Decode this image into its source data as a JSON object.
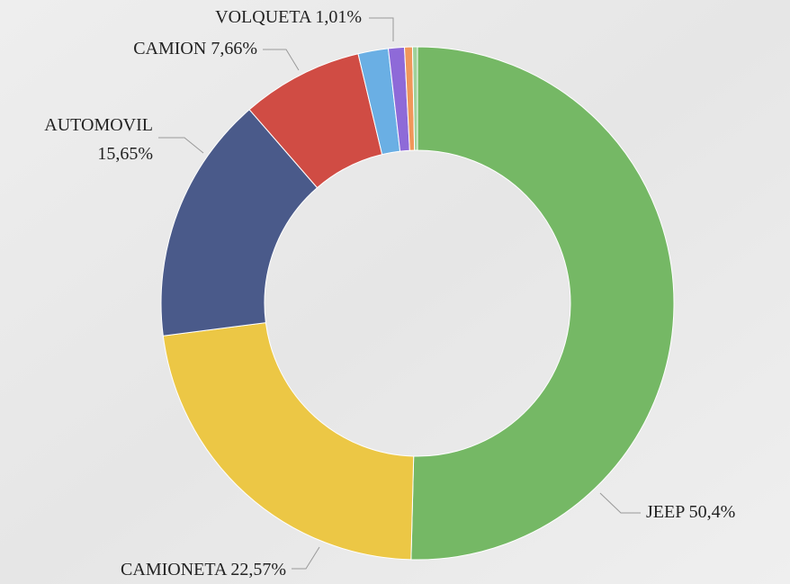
{
  "chart_data": {
    "type": "donut",
    "categories": [
      "JEEP",
      "CAMIONETA",
      "AUTOMOVIL",
      "CAMION",
      null,
      "VOLQUETA",
      null,
      null
    ],
    "values": [
      50.4,
      22.57,
      15.65,
      7.66,
      1.9,
      1.01,
      0.5,
      0.31
    ],
    "value_labels": [
      "50,4%",
      "22,57%",
      "15,65%",
      "7,66%",
      null,
      "1,01%",
      null,
      null
    ],
    "colors": [
      "#75b865",
      "#ecc745",
      "#4a5a8a",
      "#d04c44",
      "#6aafe4",
      "#8e6ad8",
      "#f0975a",
      "#9ed19a"
    ]
  }
}
